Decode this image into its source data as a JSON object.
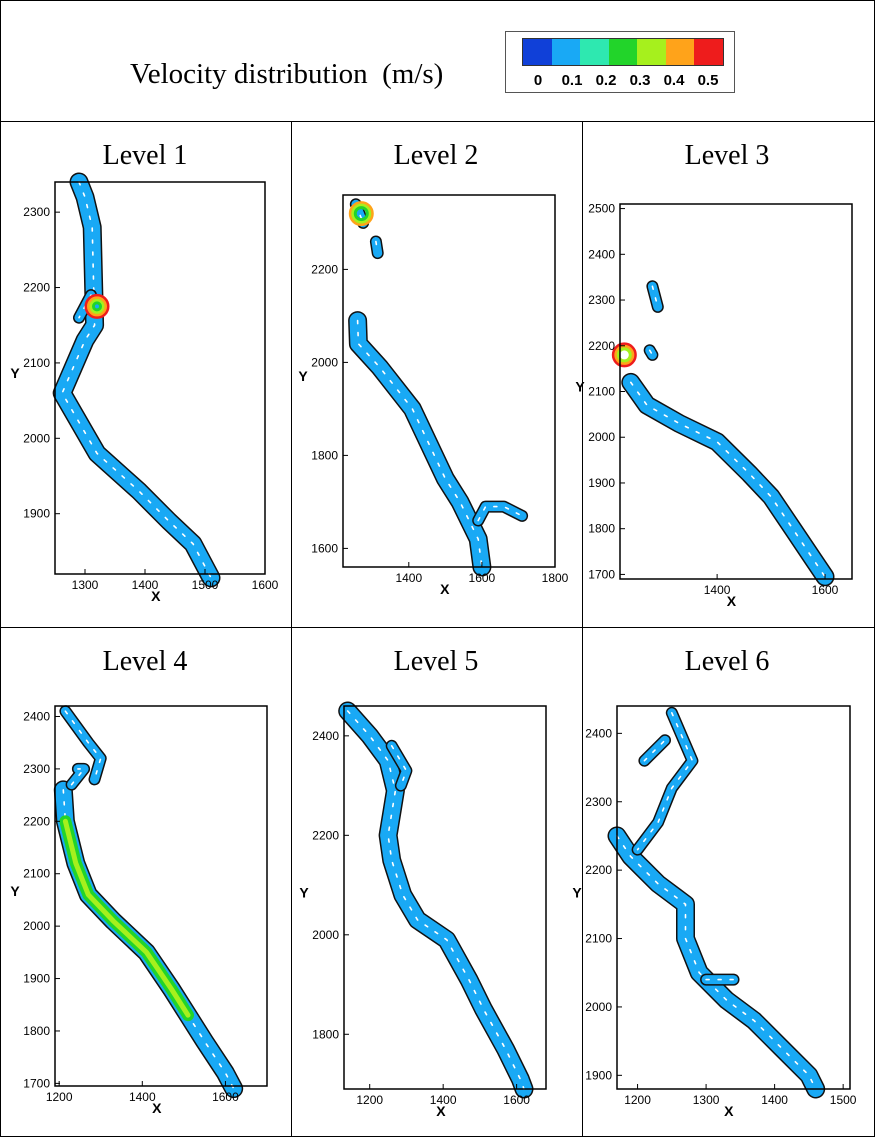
{
  "header": {
    "title": "Velocity distribution  (m/s)",
    "legend": {
      "colors": [
        "#1040d8",
        "#19a9f5",
        "#2ee8b0",
        "#22d42a",
        "#a6f01d",
        "#ffa31a",
        "#ee1c1c"
      ],
      "ticks": [
        "0",
        "0.1",
        "0.2",
        "0.3",
        "0.4",
        "0.5"
      ]
    }
  },
  "panels": [
    {
      "title": "Level 1"
    },
    {
      "title": "Level 2"
    },
    {
      "title": "Level 3"
    },
    {
      "title": "Level 4"
    },
    {
      "title": "Level 5"
    },
    {
      "title": "Level 6"
    }
  ],
  "chart_data": [
    {
      "type": "scatter",
      "title": "Level 1",
      "xlabel": "X",
      "ylabel": "Y",
      "xlim": [
        1250,
        1600
      ],
      "ylim": [
        1820,
        2340
      ],
      "xticks": [
        1300,
        1400,
        1500,
        1600
      ],
      "yticks": [
        1900,
        2000,
        2100,
        2200,
        2300
      ],
      "river_path": [
        [
          1290,
          2340
        ],
        [
          1300,
          2320
        ],
        [
          1312,
          2280
        ],
        [
          1316,
          2150
        ],
        [
          1300,
          2130
        ],
        [
          1262,
          2060
        ],
        [
          1320,
          1980
        ],
        [
          1390,
          1930
        ],
        [
          1440,
          1890
        ],
        [
          1480,
          1860
        ],
        [
          1510,
          1815
        ]
      ],
      "branches": [
        [
          [
            1310,
            2190
          ],
          [
            1290,
            2160
          ]
        ]
      ],
      "hotspot": [
        1320,
        2175
      ],
      "hotspot_levels": [
        0.2,
        0.3,
        0.4,
        0.5
      ]
    },
    {
      "type": "scatter",
      "title": "Level 2",
      "xlabel": "X",
      "ylabel": "Y",
      "xlim": [
        1220,
        1800
      ],
      "ylim": [
        1560,
        2360
      ],
      "xticks": [
        1400,
        1600,
        1800
      ],
      "yticks": [
        1600,
        1800,
        2000,
        2200
      ],
      "river_path": [
        [
          1260,
          2090
        ],
        [
          1262,
          2040
        ],
        [
          1320,
          1990
        ],
        [
          1410,
          1900
        ],
        [
          1440,
          1850
        ],
        [
          1500,
          1750
        ],
        [
          1540,
          1700
        ],
        [
          1590,
          1620
        ],
        [
          1600,
          1560
        ]
      ],
      "branches": [
        [
          [
            1590,
            1660
          ],
          [
            1610,
            1690
          ],
          [
            1660,
            1690
          ],
          [
            1710,
            1670
          ]
        ],
        [
          [
            1255,
            2340
          ],
          [
            1275,
            2300
          ]
        ],
        [
          [
            1310,
            2260
          ],
          [
            1315,
            2235
          ]
        ]
      ],
      "hotspot": [
        1270,
        2320
      ],
      "hotspot_levels": [
        0.2,
        0.3,
        0.4
      ]
    },
    {
      "type": "scatter",
      "title": "Level 3",
      "xlabel": "X",
      "ylabel": "Y",
      "xlim": [
        1220,
        1650
      ],
      "ylim": [
        1690,
        2510
      ],
      "xticks": [
        1400,
        1600
      ],
      "yticks": [
        1700,
        1800,
        1900,
        2000,
        2100,
        2200,
        2300,
        2400,
        2500
      ],
      "river_path": [
        [
          1240,
          2120
        ],
        [
          1270,
          2070
        ],
        [
          1330,
          2030
        ],
        [
          1400,
          1990
        ],
        [
          1460,
          1920
        ],
        [
          1500,
          1870
        ],
        [
          1540,
          1800
        ],
        [
          1580,
          1730
        ],
        [
          1600,
          1695
        ]
      ],
      "branches": [
        [
          [
            1280,
            2330
          ],
          [
            1290,
            2285
          ]
        ],
        [
          [
            1275,
            2190
          ],
          [
            1280,
            2180
          ]
        ]
      ],
      "hotspot": [
        1228,
        2180
      ],
      "hotspot_levels": [
        0.3,
        0.4,
        0.5
      ]
    },
    {
      "type": "scatter",
      "title": "Level 4",
      "xlabel": "X",
      "ylabel": "Y",
      "xlim": [
        1190,
        1700
      ],
      "ylim": [
        1695,
        2420
      ],
      "xticks": [
        1200,
        1400,
        1600
      ],
      "yticks": [
        1700,
        1800,
        1900,
        2000,
        2100,
        2200,
        2300,
        2400
      ],
      "river_path": [
        [
          1210,
          2260
        ],
        [
          1215,
          2200
        ],
        [
          1240,
          2120
        ],
        [
          1270,
          2060
        ],
        [
          1330,
          2010
        ],
        [
          1410,
          1950
        ],
        [
          1470,
          1880
        ],
        [
          1510,
          1830
        ],
        [
          1550,
          1780
        ],
        [
          1600,
          1720
        ],
        [
          1620,
          1690
        ]
      ],
      "branches": [
        [
          [
            1215,
            2410
          ],
          [
            1270,
            2350
          ],
          [
            1300,
            2320
          ],
          [
            1285,
            2280
          ]
        ],
        [
          [
            1230,
            2270
          ],
          [
            1260,
            2300
          ],
          [
            1245,
            2300
          ]
        ]
      ],
      "hotspot_band": true,
      "hotspot_levels": [
        0.2,
        0.3,
        0.4
      ]
    },
    {
      "type": "scatter",
      "title": "Level 5",
      "xlabel": "X",
      "ylabel": "Y",
      "xlim": [
        1130,
        1680
      ],
      "ylim": [
        1690,
        2460
      ],
      "xticks": [
        1200,
        1400,
        1600
      ],
      "yticks": [
        1800,
        2000,
        2200,
        2400
      ],
      "river_path": [
        [
          1140,
          2450
        ],
        [
          1200,
          2400
        ],
        [
          1250,
          2350
        ],
        [
          1270,
          2290
        ],
        [
          1250,
          2200
        ],
        [
          1260,
          2150
        ],
        [
          1290,
          2080
        ],
        [
          1330,
          2030
        ],
        [
          1410,
          1990
        ],
        [
          1470,
          1910
        ],
        [
          1510,
          1850
        ],
        [
          1570,
          1770
        ],
        [
          1610,
          1710
        ],
        [
          1620,
          1690
        ]
      ],
      "branches": [
        [
          [
            1260,
            2380
          ],
          [
            1300,
            2330
          ],
          [
            1285,
            2300
          ]
        ]
      ]
    },
    {
      "type": "scatter",
      "title": "Level 6",
      "xlabel": "X",
      "ylabel": "Y",
      "xlim": [
        1170,
        1510
      ],
      "ylim": [
        1880,
        2440
      ],
      "xticks": [
        1200,
        1300,
        1400,
        1500
      ],
      "yticks": [
        1900,
        2000,
        2100,
        2200,
        2300,
        2400
      ],
      "river_path": [
        [
          1170,
          2250
        ],
        [
          1190,
          2220
        ],
        [
          1230,
          2180
        ],
        [
          1270,
          2150
        ],
        [
          1270,
          2100
        ],
        [
          1290,
          2050
        ],
        [
          1330,
          2010
        ],
        [
          1370,
          1980
        ],
        [
          1410,
          1940
        ],
        [
          1450,
          1900
        ],
        [
          1460,
          1880
        ]
      ],
      "branches": [
        [
          [
            1250,
            2430
          ],
          [
            1280,
            2360
          ],
          [
            1250,
            2320
          ],
          [
            1230,
            2270
          ],
          [
            1200,
            2230
          ]
        ],
        [
          [
            1210,
            2360
          ],
          [
            1240,
            2390
          ]
        ],
        [
          [
            1300,
            2040
          ],
          [
            1340,
            2040
          ]
        ]
      ]
    }
  ]
}
